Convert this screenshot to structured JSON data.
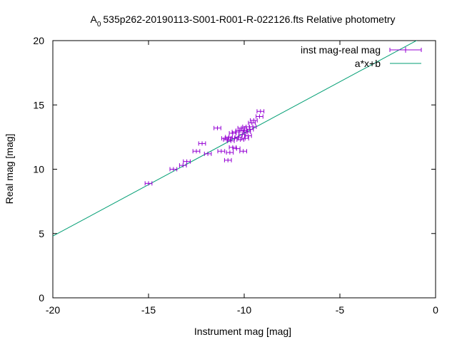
{
  "chart_data": {
    "type": "scatter",
    "title_prefix": "A",
    "title_subscript": "0",
    "title_rest": "535p262-20190113-S001-R001-R-022126.fts Relative photometry",
    "xlabel": "Instrument mag [mag]",
    "ylabel": "Real mag [mag]",
    "xlim": [
      -20,
      0
    ],
    "ylim": [
      0,
      20
    ],
    "xticks": [
      -20,
      -15,
      -10,
      -5,
      0
    ],
    "yticks": [
      0,
      5,
      10,
      15,
      20
    ],
    "xtick_labels": [
      "-20",
      "-15",
      "-10",
      "-5",
      "0"
    ],
    "ytick_labels": [
      "0",
      "5",
      "10",
      "15",
      "20"
    ],
    "grid": false,
    "legend_position": "top-right",
    "series": [
      {
        "name": "inst mag-real mag",
        "kind": "points-with-xerror",
        "color": "#9400d3",
        "points": [
          {
            "x": -15.0,
            "y": 8.9
          },
          {
            "x": -13.7,
            "y": 10.0
          },
          {
            "x": -13.2,
            "y": 10.3
          },
          {
            "x": -13.0,
            "y": 10.6
          },
          {
            "x": -12.5,
            "y": 11.4
          },
          {
            "x": -12.2,
            "y": 12.0
          },
          {
            "x": -11.9,
            "y": 11.2
          },
          {
            "x": -11.4,
            "y": 13.2
          },
          {
            "x": -11.2,
            "y": 11.4
          },
          {
            "x": -11.0,
            "y": 12.4
          },
          {
            "x": -10.9,
            "y": 12.3
          },
          {
            "x": -10.85,
            "y": 10.7
          },
          {
            "x": -10.8,
            "y": 12.5
          },
          {
            "x": -10.75,
            "y": 11.3
          },
          {
            "x": -10.7,
            "y": 12.2
          },
          {
            "x": -10.6,
            "y": 11.7
          },
          {
            "x": -10.6,
            "y": 12.8
          },
          {
            "x": -10.5,
            "y": 12.4
          },
          {
            "x": -10.45,
            "y": 12.9
          },
          {
            "x": -10.4,
            "y": 11.6
          },
          {
            "x": -10.3,
            "y": 12.5
          },
          {
            "x": -10.25,
            "y": 13.0
          },
          {
            "x": -10.2,
            "y": 12.3
          },
          {
            "x": -10.15,
            "y": 13.2
          },
          {
            "x": -10.1,
            "y": 12.7
          },
          {
            "x": -10.05,
            "y": 11.4
          },
          {
            "x": -10.0,
            "y": 13.0
          },
          {
            "x": -9.95,
            "y": 12.4
          },
          {
            "x": -9.9,
            "y": 13.3
          },
          {
            "x": -9.85,
            "y": 12.9
          },
          {
            "x": -9.8,
            "y": 12.6
          },
          {
            "x": -9.7,
            "y": 13.1
          },
          {
            "x": -9.6,
            "y": 13.6
          },
          {
            "x": -9.55,
            "y": 13.3
          },
          {
            "x": -9.5,
            "y": 13.8
          },
          {
            "x": -9.2,
            "y": 14.1
          },
          {
            "x": -9.15,
            "y": 14.5
          }
        ],
        "xerr": 0.18
      },
      {
        "name": "a*x+b",
        "kind": "line",
        "color": "#009e73",
        "slope": 0.8,
        "intercept": 20.8
      }
    ]
  }
}
